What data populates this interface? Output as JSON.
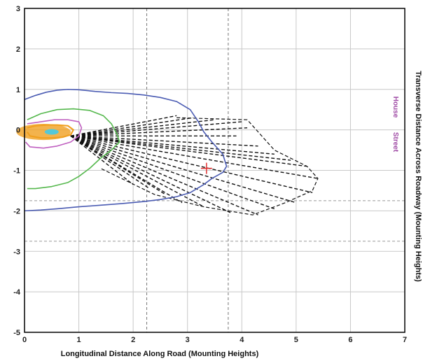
{
  "chart_data": {
    "type": "line",
    "title": "",
    "xlabel": "Longitudinal Distance Along Road (Mounting Heights)",
    "ylabel": "Transverse Distance Across Roadway (Mounting Heights)",
    "xlim": [
      0,
      7
    ],
    "ylim": [
      -5,
      3
    ],
    "x_ticks": [
      "0",
      "1",
      "2",
      "3",
      "4",
      "5",
      "6",
      "7"
    ],
    "y_ticks": [
      "3",
      "2",
      "1",
      "0",
      "-1",
      "-2",
      "-3",
      "-4",
      "-5"
    ],
    "grid": true,
    "legend": [
      "House",
      "Street"
    ],
    "legend_color": "#a04ca6",
    "reference_lines": {
      "vertical_dashed_x": [
        2.25,
        3.75
      ],
      "horizontal_dashed_y": [
        -1.75,
        -2.75
      ]
    },
    "marker": {
      "x": 3.35,
      "y": -0.95,
      "color": "#e03030"
    },
    "series": [
      {
        "color": "#4b5cb3",
        "points": [
          [
            0,
            0.75
          ],
          [
            0.2,
            0.85
          ],
          [
            0.4,
            0.93
          ],
          [
            0.6,
            0.98
          ],
          [
            0.8,
            1.0
          ],
          [
            1.0,
            0.99
          ],
          [
            1.3,
            0.95
          ],
          [
            1.6,
            0.92
          ],
          [
            1.9,
            0.9
          ],
          [
            2.2,
            0.86
          ],
          [
            2.5,
            0.8
          ],
          [
            2.8,
            0.7
          ],
          [
            3.05,
            0.5
          ],
          [
            3.2,
            0.2
          ],
          [
            3.3,
            -0.05
          ],
          [
            3.45,
            -0.3
          ],
          [
            3.65,
            -0.6
          ],
          [
            3.72,
            -0.9
          ],
          [
            3.65,
            -1.05
          ],
          [
            3.45,
            -1.2
          ],
          [
            3.3,
            -1.35
          ],
          [
            3.05,
            -1.55
          ],
          [
            2.8,
            -1.65
          ],
          [
            2.5,
            -1.72
          ],
          [
            2.2,
            -1.77
          ],
          [
            1.8,
            -1.82
          ],
          [
            1.4,
            -1.86
          ],
          [
            1.0,
            -1.9
          ],
          [
            0.6,
            -1.95
          ],
          [
            0.3,
            -1.98
          ],
          [
            0,
            -2.0
          ]
        ]
      },
      {
        "color": "#55b84d",
        "points": [
          [
            0.05,
            0.25
          ],
          [
            0.3,
            0.4
          ],
          [
            0.6,
            0.5
          ],
          [
            0.9,
            0.52
          ],
          [
            1.2,
            0.48
          ],
          [
            1.45,
            0.35
          ],
          [
            1.6,
            0.15
          ],
          [
            1.7,
            -0.1
          ],
          [
            1.75,
            -0.3
          ],
          [
            1.6,
            -0.5
          ],
          [
            1.4,
            -0.7
          ],
          [
            1.2,
            -0.95
          ],
          [
            1.0,
            -1.15
          ],
          [
            0.8,
            -1.3
          ],
          [
            0.5,
            -1.4
          ],
          [
            0.2,
            -1.45
          ],
          [
            0.05,
            -1.45
          ]
        ]
      },
      {
        "color": "#c060c0",
        "points": [
          [
            0.05,
            0.15
          ],
          [
            0.3,
            0.2
          ],
          [
            0.55,
            0.25
          ],
          [
            0.8,
            0.25
          ],
          [
            1.0,
            0.2
          ],
          [
            1.05,
            0.05
          ],
          [
            1.0,
            -0.15
          ],
          [
            0.85,
            -0.3
          ],
          [
            0.6,
            -0.4
          ],
          [
            0.35,
            -0.45
          ],
          [
            0.1,
            -0.42
          ],
          [
            0.02,
            -0.3
          ]
        ]
      },
      {
        "color": "#f0a020",
        "points": [
          [
            0.05,
            0.05
          ],
          [
            0.2,
            0.1
          ],
          [
            0.4,
            0.12
          ],
          [
            0.6,
            0.12
          ],
          [
            0.8,
            0.1
          ],
          [
            0.9,
            0.0
          ],
          [
            0.85,
            -0.12
          ],
          [
            0.7,
            -0.18
          ],
          [
            0.5,
            -0.2
          ],
          [
            0.3,
            -0.2
          ],
          [
            0.1,
            -0.15
          ],
          [
            0.05,
            -0.05
          ]
        ]
      }
    ]
  }
}
